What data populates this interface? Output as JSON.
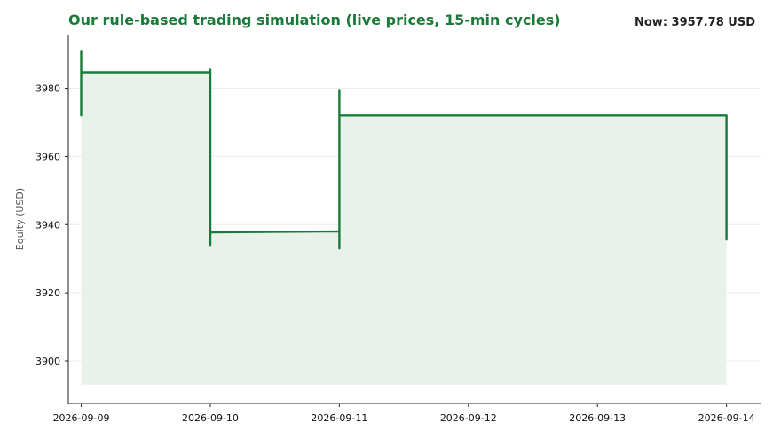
{
  "header": {
    "title": "Our rule-based trading simulation (live prices, 15-min cycles)",
    "now_label": "Now: 3957.78 USD"
  },
  "colors": {
    "line": "#1a7a3a",
    "fill": "#e8f2ea",
    "grid": "#ececec",
    "axis": "#222222"
  },
  "chart_data": {
    "type": "area",
    "title": "Our rule-based trading simulation (live prices, 15-min cycles)",
    "xlabel": "",
    "ylabel": "Equity (USD)",
    "x_ticks": [
      "2026-09-09",
      "2026-09-10",
      "2026-09-11",
      "2026-09-12",
      "2026-09-13",
      "2026-09-14"
    ],
    "y_ticks": [
      3900,
      3920,
      3940,
      3960,
      3980
    ],
    "xlim": [
      "2026-09-08 21:36",
      "2026-09-14 06:30"
    ],
    "ylim": [
      3887.5,
      3995.5
    ],
    "fill_baseline": 3893,
    "grid": "horizontal",
    "series": [
      {
        "x": [
          "2026-09-09 00:00",
          "2026-09-09 00:00",
          "2026-09-09 00:00",
          "2026-09-09 00:00",
          "2026-09-10 00:00",
          "2026-09-10 00:00",
          "2026-09-10 00:00",
          "2026-09-10 00:00",
          "2026-09-11 00:00",
          "2026-09-11 00:00",
          "2026-09-11 00:00",
          "2026-09-11 00:00",
          "2026-09-14 00:00",
          "2026-09-14 00:00"
        ],
        "y": [
          3972,
          3991,
          3980,
          3984.7,
          3984.7,
          3985.5,
          3934,
          3937.7,
          3938,
          3933,
          3979.5,
          3972,
          3972,
          3935.6
        ]
      }
    ]
  }
}
